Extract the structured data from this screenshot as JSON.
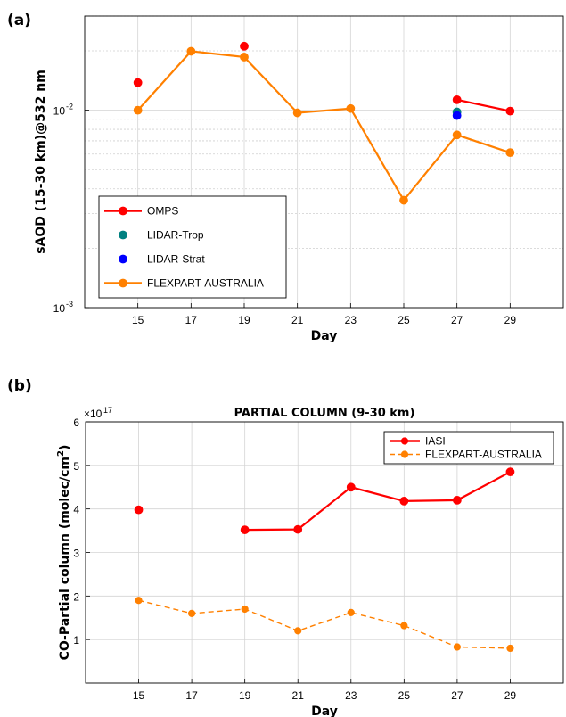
{
  "chart_data": [
    {
      "panel": "(a)",
      "type": "line",
      "title": "",
      "xlabel": "Day",
      "ylabel": "sAOD (15-30 km)@532 nm",
      "yscale": "log",
      "xlim": [
        13,
        31
      ],
      "ylim": [
        0.001,
        0.03
      ],
      "xticks": [
        15,
        17,
        19,
        21,
        23,
        25,
        27,
        29
      ],
      "xtick_labels": [
        "15",
        "17",
        "19",
        "21",
        "23",
        "25",
        "27",
        "29"
      ],
      "ytick_values": [
        0.001,
        0.01
      ],
      "ytick_labels": [
        {
          "base": "10",
          "exp": "-3"
        },
        {
          "base": "10",
          "exp": "-2"
        }
      ],
      "grid": true,
      "legend_position": "bottom-left",
      "series": [
        {
          "name": "OMPS",
          "color": "#ff0000",
          "style": "line-marker",
          "segments": [
            [
              [
                15,
                0.0138
              ]
            ],
            [
              [
                19,
                0.0211
              ]
            ],
            [
              [
                27,
                0.0113
              ],
              [
                29,
                0.0099
              ]
            ]
          ]
        },
        {
          "name": "LIDAR-Trop",
          "color": "#008080",
          "style": "marker",
          "segments": [
            [
              [
                27,
                0.0098
              ]
            ]
          ]
        },
        {
          "name": "LIDAR-Strat",
          "color": "#0000ff",
          "style": "marker",
          "segments": [
            [
              [
                27,
                0.0094
              ]
            ]
          ]
        },
        {
          "name": "FLEXPART-AUSTRALIA",
          "color": "#ff8000",
          "style": "line-marker",
          "segments": [
            [
              [
                15,
                0.01
              ],
              [
                17,
                0.0199
              ],
              [
                19,
                0.0186
              ],
              [
                21,
                0.0097
              ],
              [
                23,
                0.0102
              ],
              [
                25,
                0.0035
              ],
              [
                27,
                0.0075
              ],
              [
                29,
                0.0061
              ]
            ]
          ]
        }
      ]
    },
    {
      "panel": "(b)",
      "type": "line",
      "title": "PARTIAL COLUMN (9-30 km)",
      "xlabel": "Day",
      "ylabel": "CO-Partial column (molec/cm2)",
      "ylabel_parts": {
        "main": "CO-Partial column (molec/cm",
        "sup": "2",
        "tail": ")"
      },
      "y_multiplier": {
        "prefix": "×10",
        "exp": "17"
      },
      "yscale": "linear",
      "xlim": [
        13,
        31
      ],
      "ylim": [
        0,
        6
      ],
      "xticks": [
        15,
        17,
        19,
        21,
        23,
        25,
        27,
        29
      ],
      "xtick_labels": [
        "15",
        "17",
        "19",
        "21",
        "23",
        "25",
        "27",
        "29"
      ],
      "yticks": [
        1,
        2,
        3,
        4,
        5,
        6
      ],
      "ytick_labels": [
        "1",
        "2",
        "3",
        "4",
        "5",
        "6"
      ],
      "grid": true,
      "legend_position": "top-right",
      "series": [
        {
          "name": "IASI",
          "color": "#ff0000",
          "style": "line-marker",
          "segments": [
            [
              [
                15,
                3.98
              ]
            ],
            [
              [
                19,
                3.52
              ],
              [
                21,
                3.53
              ],
              [
                23,
                4.5
              ],
              [
                25,
                4.18
              ],
              [
                27,
                4.2
              ],
              [
                29,
                4.85
              ]
            ]
          ]
        },
        {
          "name": "FLEXPART-AUSTRALIA",
          "color": "#ff8000",
          "style": "dashed-marker",
          "segments": [
            [
              [
                15,
                1.9
              ],
              [
                17,
                1.6
              ],
              [
                19,
                1.7
              ],
              [
                21,
                1.2
              ],
              [
                23,
                1.62
              ],
              [
                25,
                1.32
              ],
              [
                27,
                0.83
              ],
              [
                29,
                0.8
              ]
            ]
          ]
        }
      ]
    }
  ]
}
